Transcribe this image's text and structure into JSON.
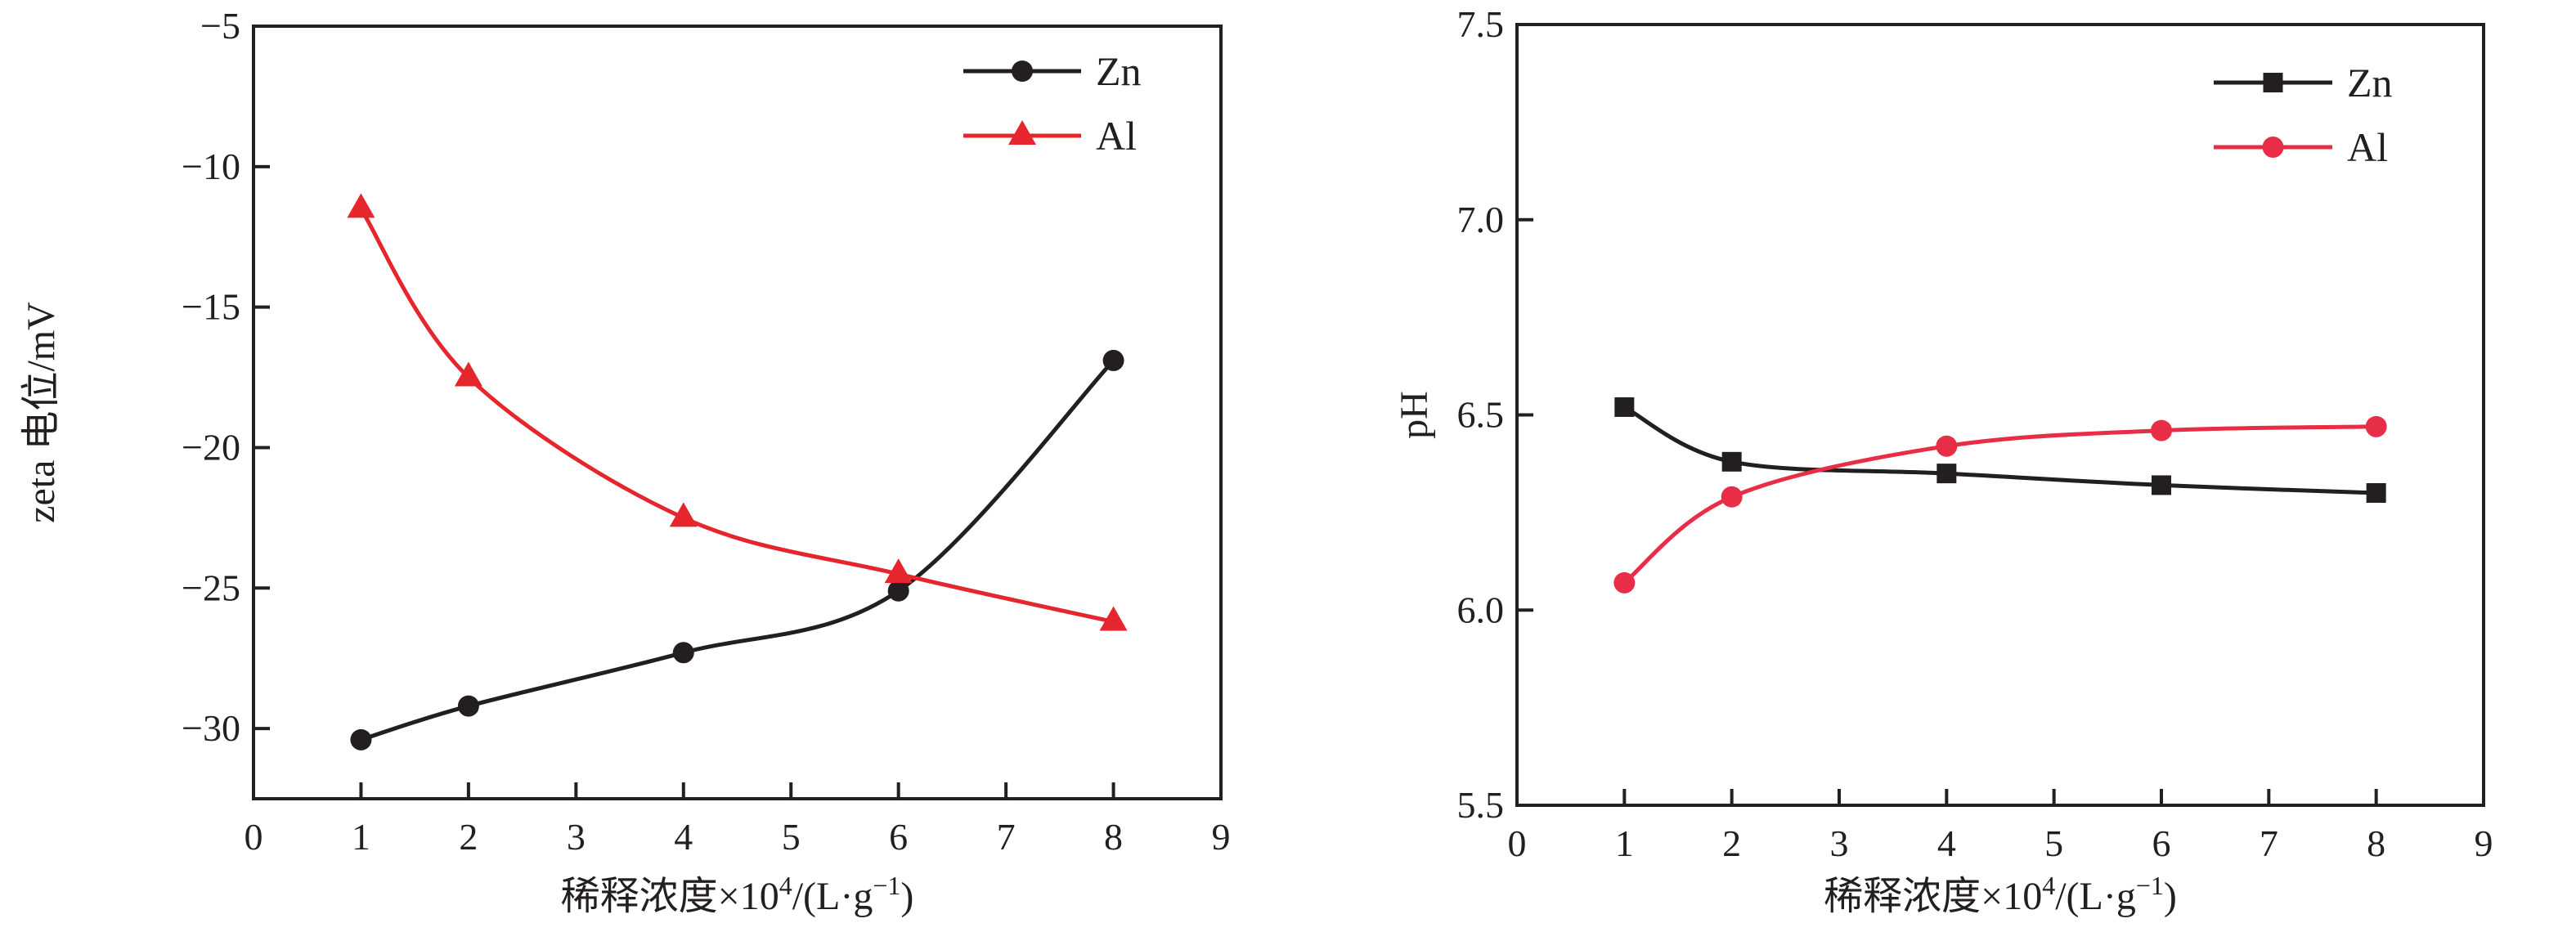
{
  "figure": {
    "background": "#ffffff",
    "frame_color": "#231f20",
    "panels": [
      "zeta-potential-vs-dilution",
      "ph-vs-dilution"
    ]
  },
  "chart_data": [
    {
      "type": "line",
      "title": "",
      "xlabel": "稀释浓度×10⁴/(L·g⁻¹)",
      "xlabel_parts": [
        {
          "t": "稀释浓度×10"
        },
        {
          "t": "4",
          "sup": true
        },
        {
          "t": "/(L·g"
        },
        {
          "t": "−1",
          "sup": true
        },
        {
          "t": ")"
        }
      ],
      "ylabel": "zeta 电位/mV",
      "xlim": [
        0,
        9
      ],
      "ylim": [
        -32.5,
        -5
      ],
      "grid": false,
      "legend_position": "top-right-inside",
      "frame_color": "#231f20",
      "x": [
        1,
        2,
        4,
        6,
        8
      ],
      "xticks": [
        {
          "v": 0,
          "l": "0"
        },
        {
          "v": 1,
          "l": "1"
        },
        {
          "v": 2,
          "l": "2"
        },
        {
          "v": 3,
          "l": "3"
        },
        {
          "v": 4,
          "l": "4"
        },
        {
          "v": 5,
          "l": "5"
        },
        {
          "v": 6,
          "l": "6"
        },
        {
          "v": 7,
          "l": "7"
        },
        {
          "v": 8,
          "l": "8"
        },
        {
          "v": 9,
          "l": "9"
        }
      ],
      "yticks": [
        {
          "v": -5,
          "l": "−5"
        },
        {
          "v": -10,
          "l": "−10"
        },
        {
          "v": -15,
          "l": "−15"
        },
        {
          "v": -20,
          "l": "−20"
        },
        {
          "v": -25,
          "l": "−25"
        },
        {
          "v": -30,
          "l": "−30"
        }
      ],
      "series": [
        {
          "name": "Zn",
          "color": "#231f20",
          "marker": "circle",
          "values": [
            -30.4,
            -29.2,
            -27.3,
            -25.1,
            -16.9
          ]
        },
        {
          "name": "Al",
          "color": "#e5262c",
          "marker": "triangle",
          "values": [
            -11.5,
            -17.5,
            -22.5,
            -24.5,
            -26.2
          ]
        }
      ],
      "legend": [
        {
          "label": "Zn",
          "marker": "circle",
          "color": "#231f20"
        },
        {
          "label": "Al",
          "marker": "triangle",
          "color": "#e5262c"
        }
      ]
    },
    {
      "type": "line",
      "title": "",
      "xlabel": "稀释浓度×10⁴/(L·g⁻¹)",
      "xlabel_parts": [
        {
          "t": "稀释浓度×10"
        },
        {
          "t": "4",
          "sup": true
        },
        {
          "t": "/(L·g"
        },
        {
          "t": "−1",
          "sup": true
        },
        {
          "t": ")"
        }
      ],
      "ylabel": "pH",
      "xlim": [
        0,
        9
      ],
      "ylim": [
        5.5,
        7.5
      ],
      "grid": false,
      "legend_position": "top-right-inside",
      "frame_color": "#231f20",
      "x": [
        1,
        2,
        4,
        6,
        8
      ],
      "xticks": [
        {
          "v": 0,
          "l": "0"
        },
        {
          "v": 1,
          "l": "1"
        },
        {
          "v": 2,
          "l": "2"
        },
        {
          "v": 3,
          "l": "3"
        },
        {
          "v": 4,
          "l": "4"
        },
        {
          "v": 5,
          "l": "5"
        },
        {
          "v": 6,
          "l": "6"
        },
        {
          "v": 7,
          "l": "7"
        },
        {
          "v": 8,
          "l": "8"
        },
        {
          "v": 9,
          "l": "9"
        }
      ],
      "yticks": [
        {
          "v": 5.5,
          "l": "5.5"
        },
        {
          "v": 6.0,
          "l": "6.0"
        },
        {
          "v": 6.5,
          "l": "6.5"
        },
        {
          "v": 7.0,
          "l": "7.0"
        },
        {
          "v": 7.5,
          "l": "7.5"
        }
      ],
      "series": [
        {
          "name": "Zn",
          "color": "#231f20",
          "marker": "square",
          "values": [
            6.52,
            6.38,
            6.35,
            6.32,
            6.3
          ]
        },
        {
          "name": "Al",
          "color": "#e82d46",
          "marker": "circle",
          "values": [
            6.07,
            6.29,
            6.42,
            6.46,
            6.47
          ]
        }
      ],
      "legend": [
        {
          "label": "Zn",
          "marker": "square",
          "color": "#231f20"
        },
        {
          "label": "Al",
          "marker": "circle",
          "color": "#e82d46"
        }
      ]
    }
  ]
}
